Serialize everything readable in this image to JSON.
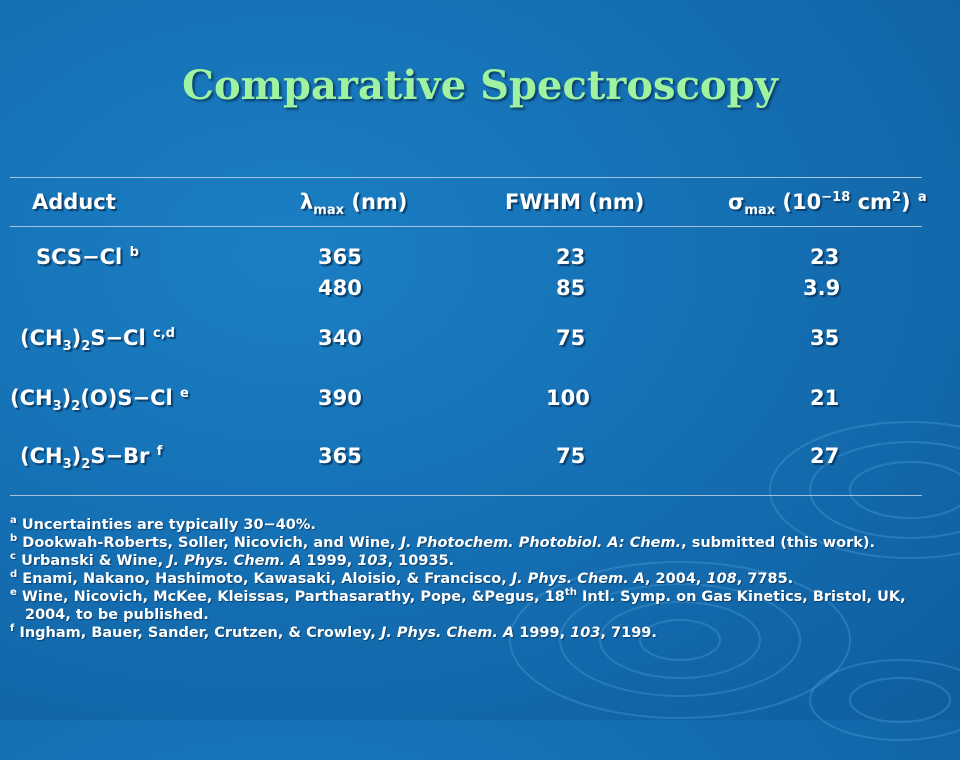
{
  "title": "Comparative Spectroscopy",
  "headers": {
    "adduct": "Adduct",
    "lambda_sym": "λ",
    "lambda_sub": "max",
    "lambda_unit": " (nm)",
    "fwhm": "FWHM (nm)",
    "sigma_sym": "σ",
    "sigma_sub": "max",
    "sigma_pre": " (10",
    "sigma_exp": "−18",
    "sigma_mid": " cm",
    "sigma_exp2": "2",
    "sigma_post": ")",
    "sigma_note": "a"
  },
  "rows": [
    {
      "adduct": "SCS−Cl",
      "note": "b",
      "lambda": "365",
      "fwhm": "23",
      "sigma": "23"
    },
    {
      "adduct": "",
      "note": "",
      "lambda": "480",
      "fwhm": "85",
      "sigma": "3.9"
    },
    {
      "adduct_pre": "(CH",
      "adduct_sub": "3",
      "adduct_mid": ")",
      "adduct_sub2": "2",
      "adduct_post": "S−Cl",
      "note": "c,d",
      "lambda": "340",
      "fwhm": "75",
      "sigma": "35"
    },
    {
      "adduct_pre": "(CH",
      "adduct_sub": "3",
      "adduct_mid": ")",
      "adduct_sub2": "2",
      "adduct_post": "(O)S−Cl",
      "note": "e",
      "lambda": "390",
      "fwhm": "100",
      "sigma": "21"
    },
    {
      "adduct_pre": "(CH",
      "adduct_sub": "3",
      "adduct_mid": ")",
      "adduct_sub2": "2",
      "adduct_post": "S−Br",
      "note": "f",
      "lambda": "365",
      "fwhm": "75",
      "sigma": "27"
    }
  ],
  "footnotes": [
    {
      "mark": "a",
      "text": " Uncertainties are typically 30−40%."
    },
    {
      "mark": "b",
      "pre": " Dookwah-Roberts, Soller, Nicovich, and Wine, ",
      "journal": "J. Photochem. Photobiol. A: Chem.",
      "post": ", submitted (this work)."
    },
    {
      "mark": "c",
      "pre": " Urbanski & Wine, ",
      "journal": "J. Phys. Chem. A",
      "year": " 1999, ",
      "vol": "103",
      "post": ", 10935."
    },
    {
      "mark": "d",
      "pre": " Enami, Nakano, Hashimoto, Kawasaki, Aloisio, & Francisco, ",
      "journal": "J. Phys. Chem. A",
      "year": ", 2004, ",
      "vol": "108",
      "post": ", 7785."
    },
    {
      "mark": "e",
      "pre": " Wine, Nicovich, McKee, Kleissas, Parthasarathy, Pope, &Pegus, 18",
      "sup": "th",
      "post": " Intl. Symp. on Gas Kinetics, Bristol, UK, 2004, to be published."
    },
    {
      "mark": "f",
      "pre": " Ingham, Bauer, Sander, Crutzen, & Crowley, ",
      "journal": "J. Phys. Chem. A",
      "year": " 1999, ",
      "vol": "103",
      "post": ", 7199."
    }
  ]
}
